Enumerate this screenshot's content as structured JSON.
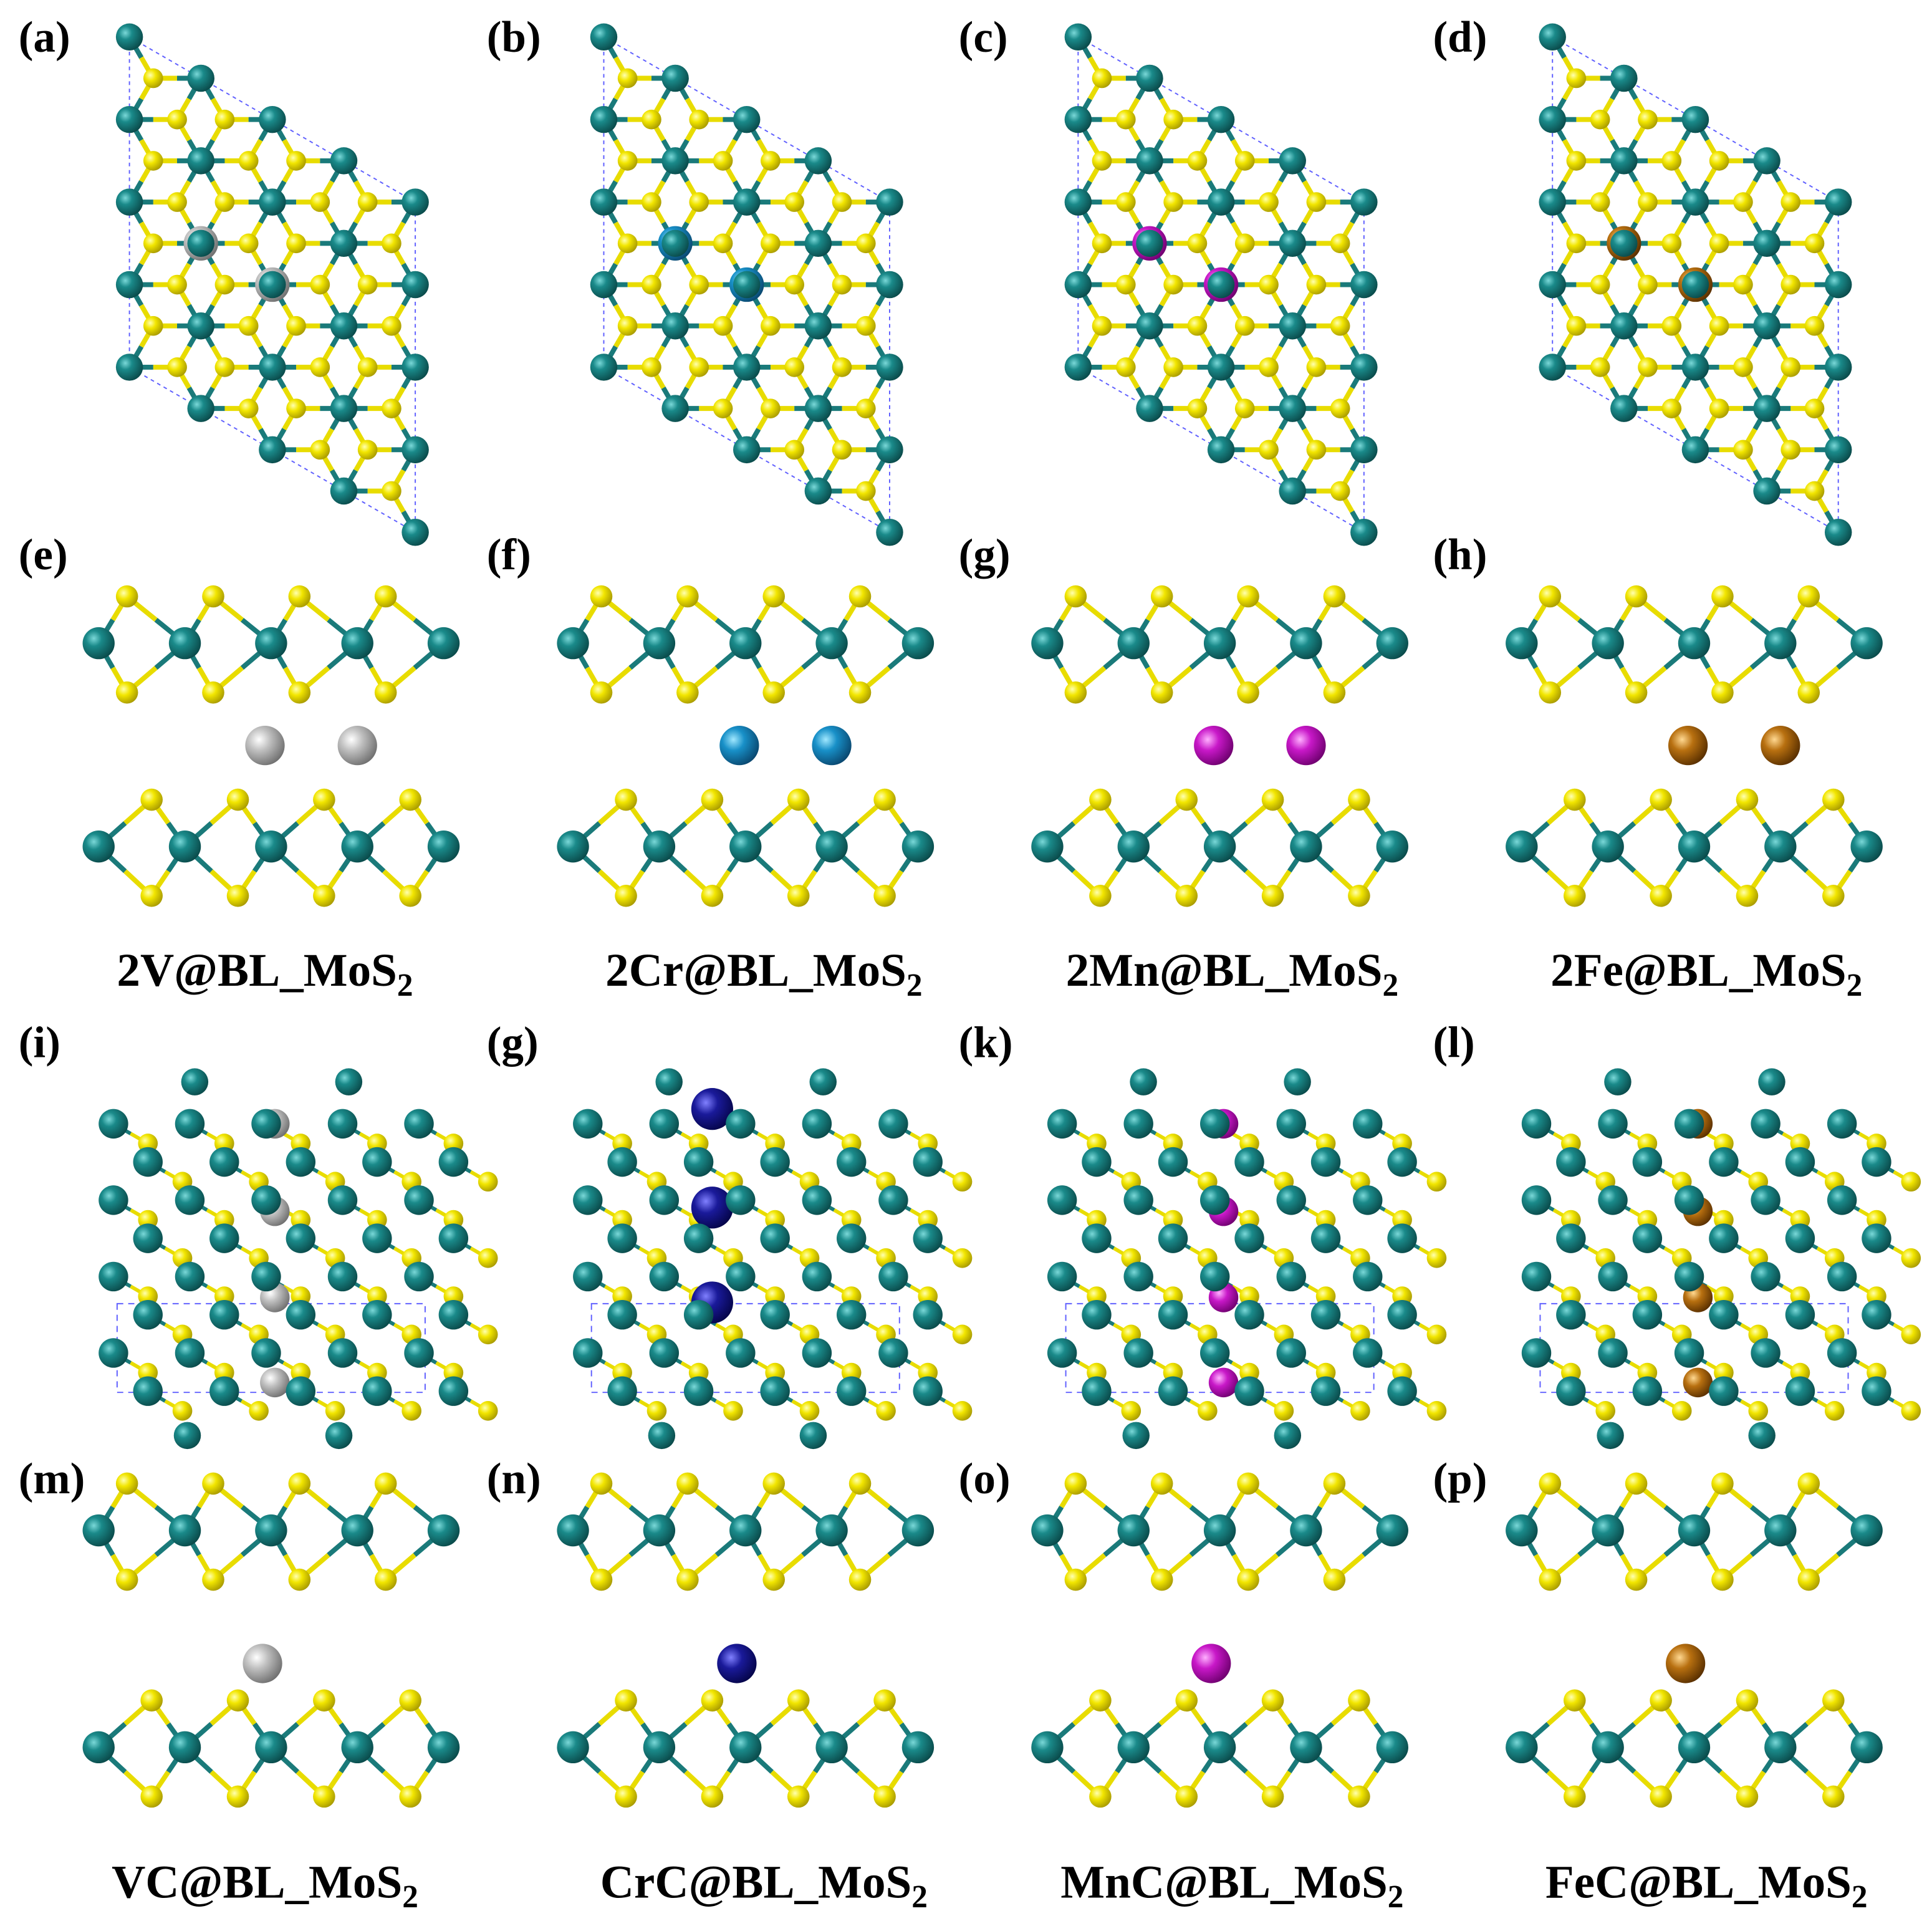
{
  "panels": [
    {
      "label": "(a)"
    },
    {
      "label": "(b)"
    },
    {
      "label": "(c)"
    },
    {
      "label": "(d)"
    },
    {
      "label": "(e)"
    },
    {
      "label": "(f)"
    },
    {
      "label": "(g)"
    },
    {
      "label": "(h)"
    },
    {
      "label": "(i)"
    },
    {
      "label": "(g)"
    },
    {
      "label": "(k)"
    },
    {
      "label": "(l)"
    },
    {
      "label": "(m)"
    },
    {
      "label": "(n)"
    },
    {
      "label": "(o)"
    },
    {
      "label": "(p)"
    }
  ],
  "captions": [
    {
      "text": "2V@BL_MoS",
      "subscript": "2"
    },
    {
      "text": "2Cr@BL_MoS",
      "subscript": "2"
    },
    {
      "text": "2Mn@BL_MoS",
      "subscript": "2"
    },
    {
      "text": "2Fe@BL_MoS",
      "subscript": "2"
    },
    {
      "text": "VC@BL_MoS",
      "subscript": "2"
    },
    {
      "text": "CrC@BL_MoS",
      "subscript": "2"
    },
    {
      "text": "MnC@BL_MoS",
      "subscript": "2"
    },
    {
      "text": "FeC@BL_MoS",
      "subscript": "2"
    }
  ]
}
